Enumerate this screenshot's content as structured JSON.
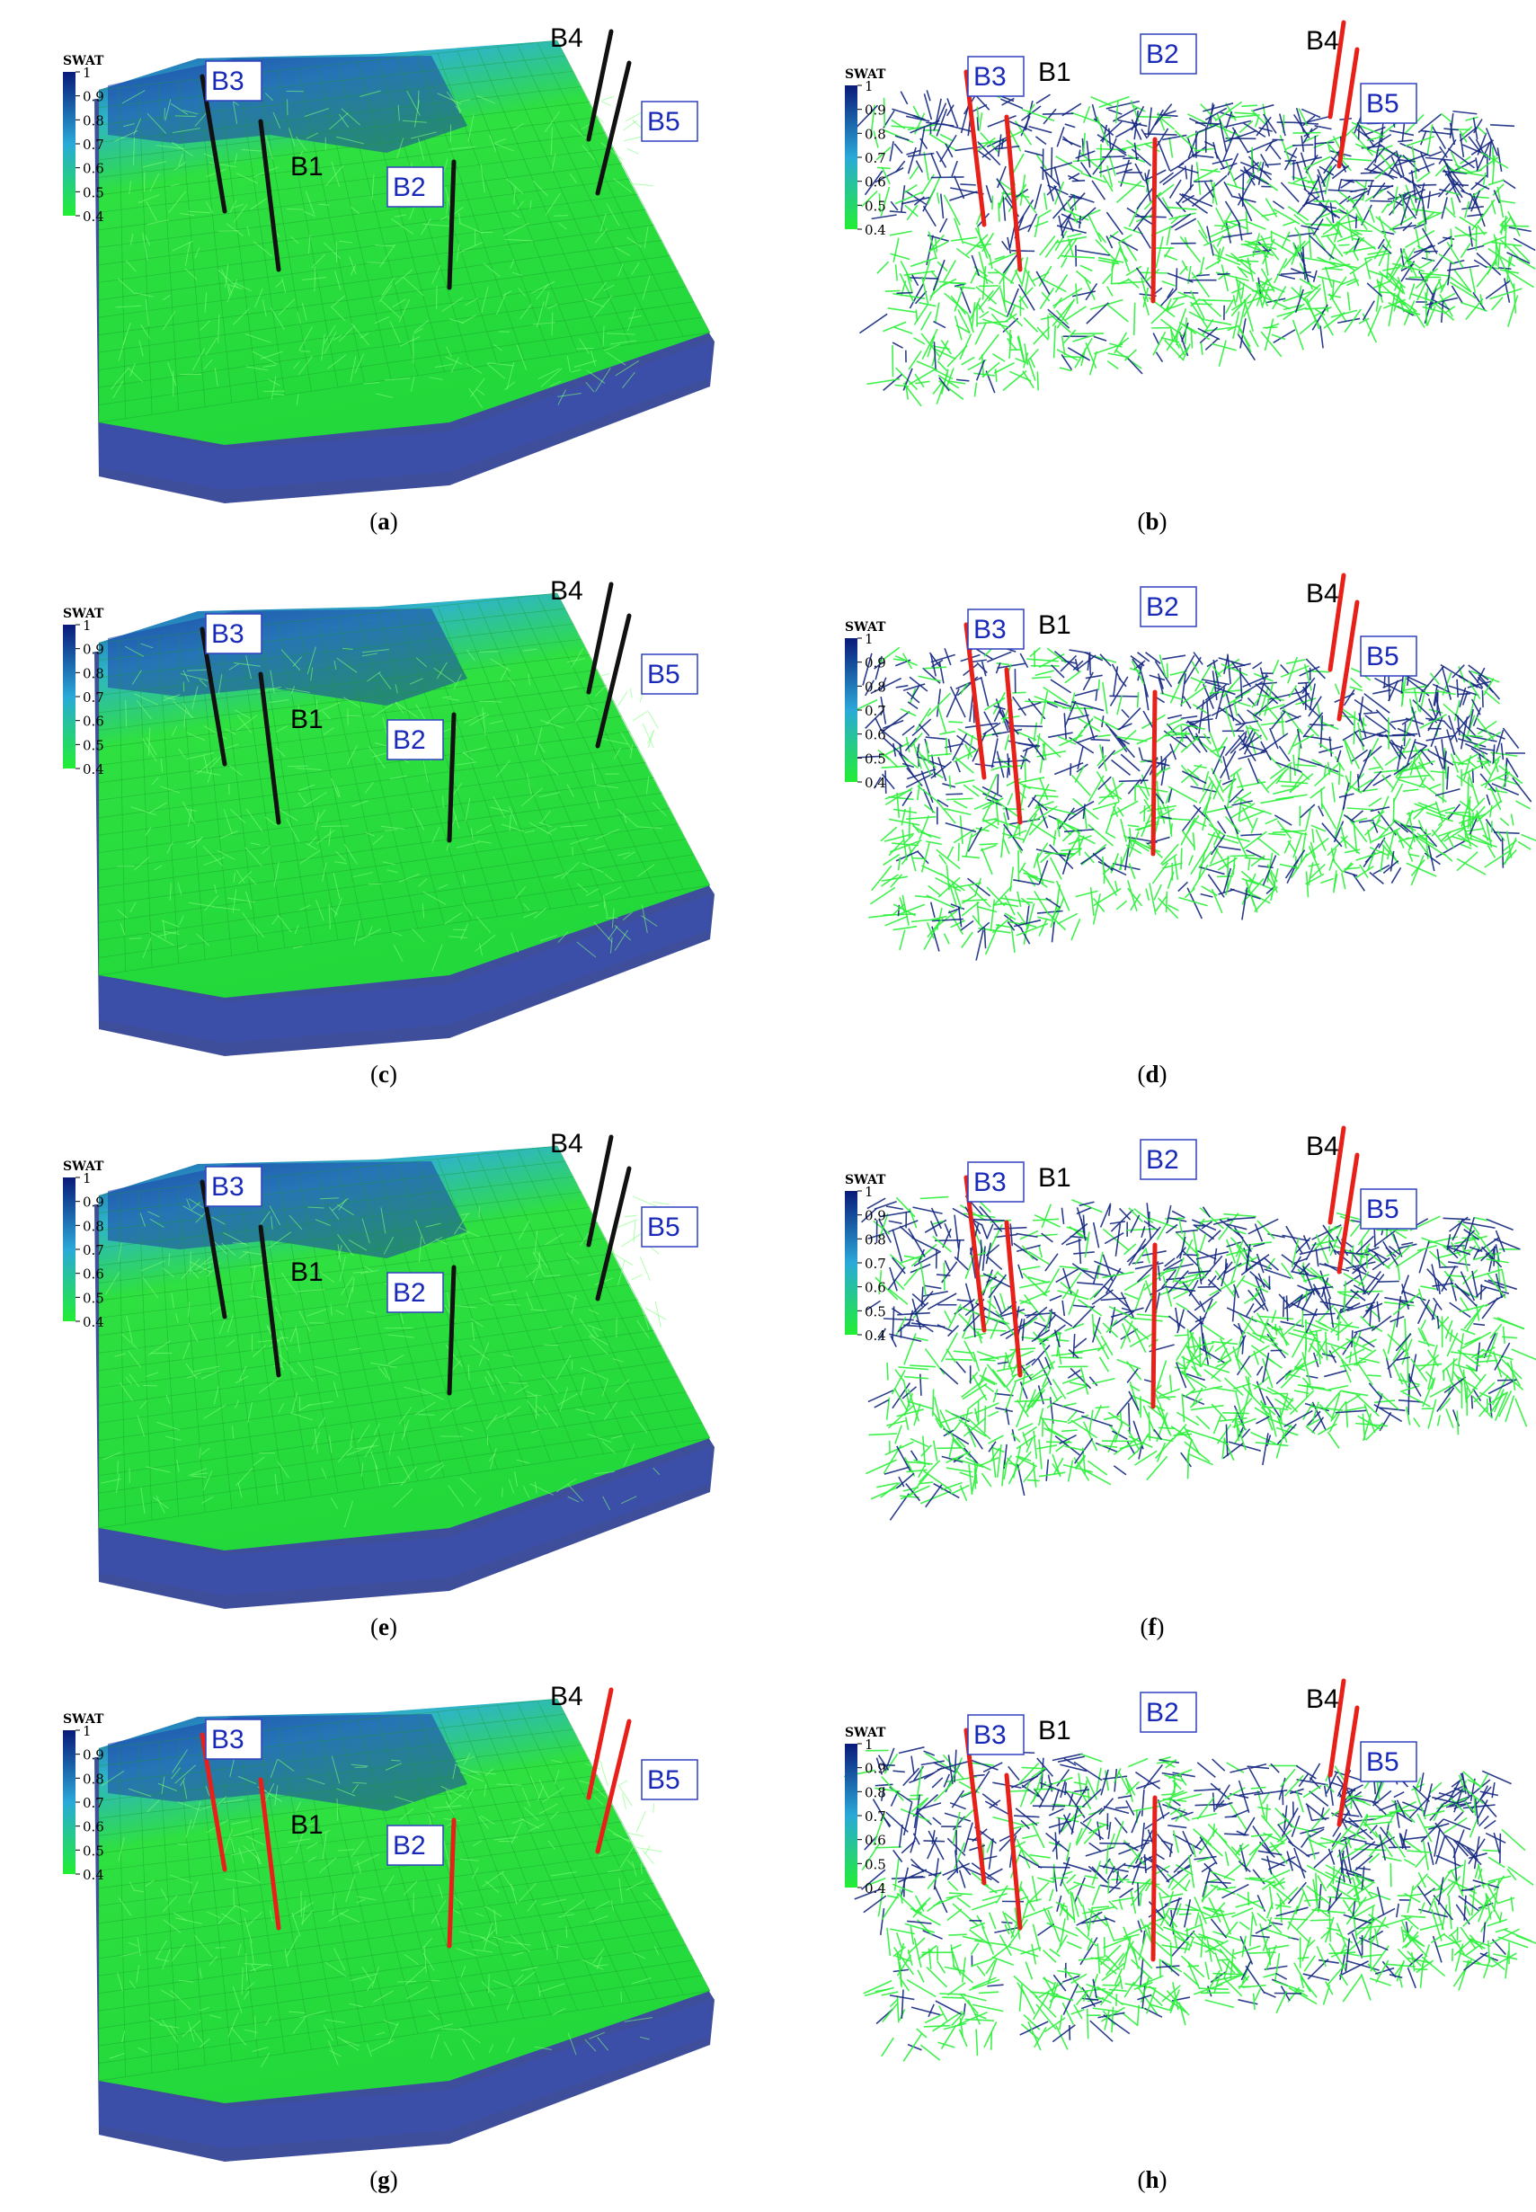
{
  "colorbar": {
    "title": "SWAT",
    "ticks": [
      "1",
      "0.9",
      "0.8",
      "0.7",
      "0.6",
      "0.5",
      "0.4"
    ],
    "range": [
      0.4,
      1
    ],
    "colors": {
      "high": "#0a1a7a",
      "mid": "#2aa9d8",
      "low": "#22ee33"
    }
  },
  "wells": {
    "labels": [
      "B1",
      "B2",
      "B3",
      "B4",
      "B5"
    ],
    "boxed": [
      "B2",
      "B3",
      "B5"
    ]
  },
  "panels": [
    {
      "id": "a",
      "caption": "a",
      "view": "grid-block",
      "well_color": "#111111"
    },
    {
      "id": "b",
      "caption": "b",
      "view": "fracture-network",
      "well_color": "#e8201a"
    },
    {
      "id": "c",
      "caption": "c",
      "view": "grid-block",
      "well_color": "#111111"
    },
    {
      "id": "d",
      "caption": "d",
      "view": "fracture-network",
      "well_color": "#e8201a"
    },
    {
      "id": "e",
      "caption": "e",
      "view": "grid-block",
      "well_color": "#111111"
    },
    {
      "id": "f",
      "caption": "f",
      "view": "fracture-network",
      "well_color": "#e8201a"
    },
    {
      "id": "g",
      "caption": "g",
      "view": "grid-block",
      "well_color": "#e8201a"
    },
    {
      "id": "h",
      "caption": "h",
      "view": "fracture-network",
      "well_color": "#e8201a"
    }
  ]
}
